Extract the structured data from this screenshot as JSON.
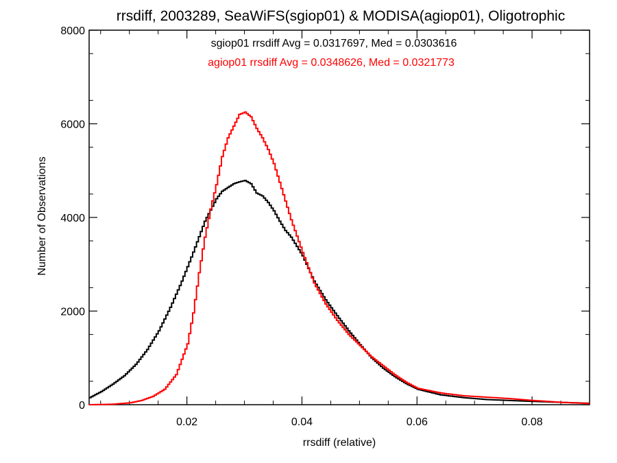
{
  "chart_data": {
    "type": "line",
    "title": "rrsdiff, 2003289, SeaWiFS(sgiop01) & MODISA(agiop01), Oligotrophic",
    "xlabel": "rrsdiff (relative)",
    "ylabel": "Number of Observations",
    "xlim": [
      0.003,
      0.09
    ],
    "ylim": [
      0,
      8000
    ],
    "x_ticks": [
      0.02,
      0.04,
      0.06,
      0.08
    ],
    "x_tick_labels": [
      "0.02",
      "0.04",
      "0.06",
      "0.08"
    ],
    "y_ticks": [
      0,
      2000,
      4000,
      6000,
      8000
    ],
    "y_tick_labels": [
      "0",
      "2000",
      "4000",
      "6000",
      "8000"
    ],
    "grid": false,
    "annotations": [
      {
        "text": "sgiop01 rrsdiff Avg = 0.0317697, Med = 0.0303616",
        "color": "#000000"
      },
      {
        "text": "agiop01 rrsdiff Avg = 0.0348626, Med = 0.0321773",
        "color": "#ff0000"
      }
    ],
    "series": [
      {
        "color": "#000000",
        "x": [
          0.003,
          0.005,
          0.007,
          0.009,
          0.011,
          0.013,
          0.015,
          0.017,
          0.019,
          0.021,
          0.023,
          0.025,
          0.026,
          0.027,
          0.028,
          0.029,
          0.03,
          0.031,
          0.032,
          0.033,
          0.034,
          0.035,
          0.036,
          0.037,
          0.038,
          0.04,
          0.042,
          0.044,
          0.046,
          0.048,
          0.05,
          0.052,
          0.054,
          0.056,
          0.058,
          0.06,
          0.064,
          0.068,
          0.072,
          0.076,
          0.08,
          0.085,
          0.09
        ],
        "y": [
          150,
          280,
          440,
          620,
          860,
          1180,
          1580,
          2080,
          2640,
          3260,
          3920,
          4400,
          4560,
          4640,
          4720,
          4760,
          4790,
          4720,
          4520,
          4460,
          4320,
          4140,
          3920,
          3720,
          3580,
          3180,
          2640,
          2240,
          1900,
          1580,
          1280,
          1000,
          780,
          600,
          450,
          330,
          210,
          150,
          110,
          90,
          70,
          50,
          30
        ]
      },
      {
        "color": "#ff0000",
        "x": [
          0.003,
          0.007,
          0.01,
          0.012,
          0.014,
          0.016,
          0.018,
          0.02,
          0.021,
          0.022,
          0.023,
          0.024,
          0.025,
          0.026,
          0.027,
          0.028,
          0.029,
          0.03,
          0.031,
          0.032,
          0.033,
          0.034,
          0.035,
          0.036,
          0.037,
          0.038,
          0.04,
          0.042,
          0.044,
          0.046,
          0.048,
          0.05,
          0.052,
          0.054,
          0.056,
          0.058,
          0.06,
          0.064,
          0.068,
          0.072,
          0.076,
          0.08,
          0.085,
          0.09
        ],
        "y": [
          0,
          10,
          40,
          90,
          180,
          330,
          640,
          1300,
          1960,
          2820,
          3580,
          4180,
          4700,
          5300,
          5700,
          5950,
          6200,
          6250,
          6150,
          5900,
          5700,
          5450,
          5150,
          4750,
          4350,
          3950,
          3250,
          2600,
          2150,
          1800,
          1500,
          1260,
          1020,
          830,
          640,
          480,
          350,
          250,
          190,
          160,
          130,
          90,
          50,
          25
        ]
      }
    ]
  }
}
